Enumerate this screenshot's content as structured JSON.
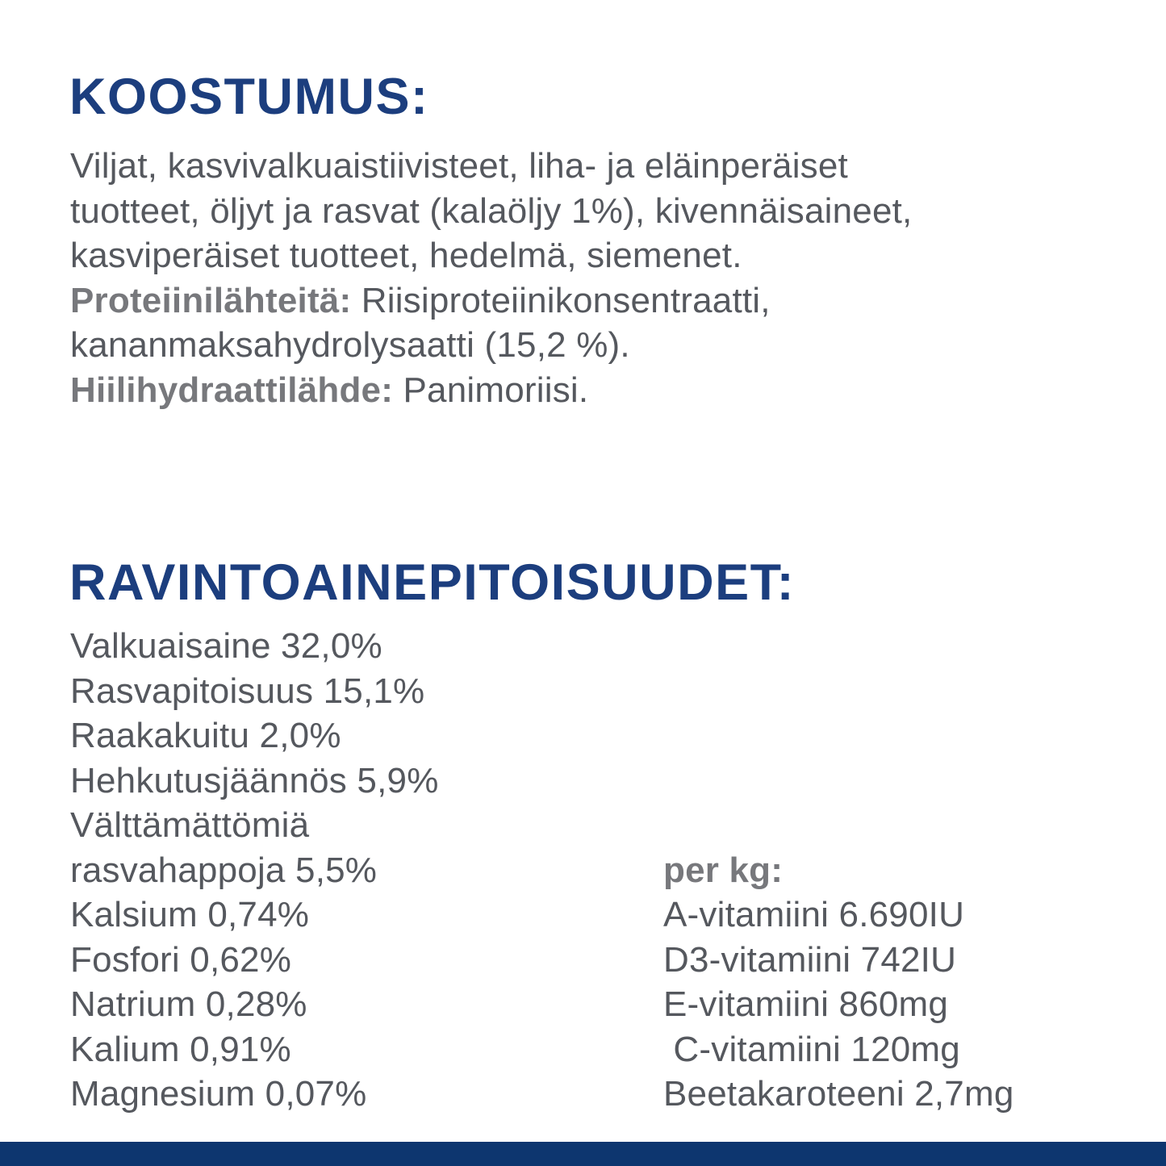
{
  "colors": {
    "heading_blue": "#1c3e7e",
    "body_text_gray": "#55585e",
    "bold_label_gray": "#77787c",
    "footer_bar_blue": "#0d366f",
    "background": "#ffffff"
  },
  "composition": {
    "heading": "KOOSTUMUS:",
    "lines": [
      {
        "bold": "",
        "text": "Viljat, kasvivalkuaistiivisteet, liha- ja eläinperäiset"
      },
      {
        "bold": "",
        "text": "tuotteet, öljyt ja rasvat (kalaöljy 1%), kivennäisaineet,"
      },
      {
        "bold": "",
        "text": "kasviperäiset tuotteet, hedelmä, siemenet."
      },
      {
        "bold": "Proteiinilähteitä:",
        "text": " Riisiproteiinikonsentraatti,"
      },
      {
        "bold": "",
        "text": "kananmaksahydrolysaatti (15,2 %)."
      },
      {
        "bold": "Hiilihydraattilähde:",
        "text": " Panimoriisi."
      }
    ]
  },
  "nutrients": {
    "heading": "RAVINTOAINEPITOISUUDET:",
    "left_column": [
      "Valkuaisaine 32,0%",
      "Rasvapitoisuus 15,1%",
      "Raakakuitu 2,0%",
      "Hehkutusjäännös 5,9%",
      "Välttämättömiä",
      "rasvahappoja 5,5%",
      "Kalsium 0,74%",
      "Fosfori 0,62%",
      "Natrium 0,28%",
      "Kalium 0,91%",
      "Magnesium 0,07%"
    ],
    "right_column": {
      "label": "per kg:",
      "items": [
        "A-vitamiini 6.690IU",
        "D3-vitamiini 742IU",
        "E-vitamiini 860mg",
        " C-vitamiini 120mg",
        "Beetakaroteeni 2,7mg"
      ]
    }
  }
}
